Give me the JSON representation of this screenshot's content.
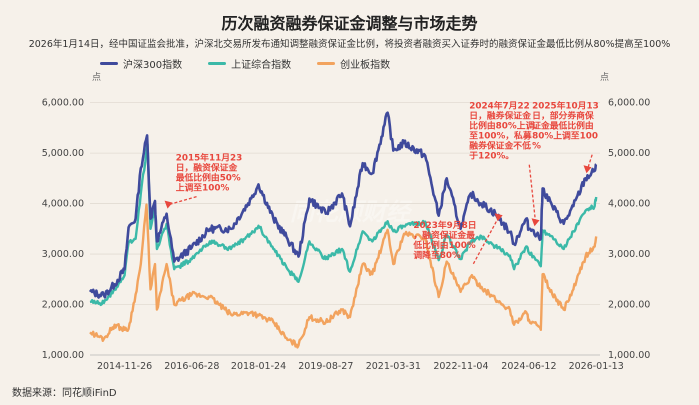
{
  "chart_data": {
    "type": "line",
    "title": "历次融资融券保证金调整与市场走势",
    "subtitle": "2026年1月14日，经中国证监会批准，沪深北交易所发布通知调整融资保证金比例，将投资者融资买入证券时的融资保证金最低比例从80%提高至100%",
    "y_unit_left": "点",
    "y_unit_right": "点",
    "ylim": [
      1000,
      6250
    ],
    "y_ticks": [
      "1,000.00",
      "2,000.00",
      "3,000.00",
      "4,000.00",
      "5,000.00",
      "6,000.00"
    ],
    "x_ticks": [
      "2014-11-26",
      "2016-06-28",
      "2018-01-24",
      "2019-08-27",
      "2021-03-31",
      "2022-11-04",
      "2024-06-12",
      "2026-01-13"
    ],
    "x_range": [
      "2014-02-01",
      "2026-02-15"
    ],
    "legend_position": "top-left",
    "grid": true,
    "series": [
      {
        "name": "沪深300指数",
        "color": "#3f4a9c",
        "points": [
          [
            "2014-02-01",
            2250
          ],
          [
            "2014-06-01",
            2180
          ],
          [
            "2014-09-01",
            2400
          ],
          [
            "2014-11-26",
            2700
          ],
          [
            "2014-12-31",
            3530
          ],
          [
            "2015-03-01",
            3700
          ],
          [
            "2015-04-15",
            4700
          ],
          [
            "2015-06-08",
            5350
          ],
          [
            "2015-07-08",
            3700
          ],
          [
            "2015-08-15",
            4050
          ],
          [
            "2015-09-01",
            3250
          ],
          [
            "2015-11-23",
            3800
          ],
          [
            "2016-01-28",
            2850
          ],
          [
            "2016-06-28",
            3130
          ],
          [
            "2016-11-30",
            3500
          ],
          [
            "2017-06-01",
            3500
          ],
          [
            "2017-11-22",
            4100
          ],
          [
            "2018-01-24",
            4380
          ],
          [
            "2018-06-01",
            3700
          ],
          [
            "2018-10-01",
            3300
          ],
          [
            "2019-01-04",
            2950
          ],
          [
            "2019-04-08",
            4100
          ],
          [
            "2019-08-27",
            3800
          ],
          [
            "2020-01-14",
            4200
          ],
          [
            "2020-03-23",
            3550
          ],
          [
            "2020-07-10",
            4800
          ],
          [
            "2020-10-01",
            4600
          ],
          [
            "2021-02-10",
            5800
          ],
          [
            "2021-03-31",
            5050
          ],
          [
            "2021-07-01",
            5200
          ],
          [
            "2021-12-31",
            4950
          ],
          [
            "2022-04-26",
            3760
          ],
          [
            "2022-07-04",
            4500
          ],
          [
            "2022-11-01",
            3500
          ],
          [
            "2023-01-28",
            4200
          ],
          [
            "2023-05-01",
            4000
          ],
          [
            "2023-08-28",
            3800
          ],
          [
            "2023-12-31",
            3430
          ],
          [
            "2024-02-05",
            3200
          ],
          [
            "2024-05-20",
            3700
          ],
          [
            "2024-06-12",
            3500
          ],
          [
            "2024-07-22",
            3470
          ],
          [
            "2024-09-23",
            3300
          ],
          [
            "2024-10-08",
            4300
          ],
          [
            "2024-12-31",
            3950
          ],
          [
            "2025-04-08",
            3600
          ],
          [
            "2025-07-01",
            3950
          ],
          [
            "2025-10-13",
            4500
          ],
          [
            "2025-12-31",
            4650
          ],
          [
            "2026-01-13",
            4780
          ]
        ]
      },
      {
        "name": "上证综合指数",
        "color": "#3bb9a8",
        "points": [
          [
            "2014-02-01",
            2050
          ],
          [
            "2014-06-01",
            2030
          ],
          [
            "2014-09-01",
            2300
          ],
          [
            "2014-11-26",
            2580
          ],
          [
            "2014-12-31",
            3230
          ],
          [
            "2015-03-01",
            3300
          ],
          [
            "2015-04-15",
            4200
          ],
          [
            "2015-06-12",
            5178
          ],
          [
            "2015-07-08",
            3500
          ],
          [
            "2015-08-15",
            3900
          ],
          [
            "2015-09-01",
            3100
          ],
          [
            "2015-11-23",
            3600
          ],
          [
            "2016-01-28",
            2700
          ],
          [
            "2016-06-28",
            2900
          ],
          [
            "2016-11-30",
            3250
          ],
          [
            "2017-06-01",
            3100
          ],
          [
            "2017-11-22",
            3400
          ],
          [
            "2018-01-24",
            3560
          ],
          [
            "2018-06-01",
            3100
          ],
          [
            "2018-10-01",
            2700
          ],
          [
            "2019-01-04",
            2450
          ],
          [
            "2019-04-08",
            3250
          ],
          [
            "2019-08-27",
            2900
          ],
          [
            "2020-01-14",
            3100
          ],
          [
            "2020-03-23",
            2650
          ],
          [
            "2020-07-10",
            3450
          ],
          [
            "2020-10-01",
            3250
          ],
          [
            "2021-02-10",
            3650
          ],
          [
            "2021-03-31",
            3450
          ],
          [
            "2021-07-01",
            3550
          ],
          [
            "2021-12-31",
            3640
          ],
          [
            "2022-04-26",
            2880
          ],
          [
            "2022-07-04",
            3380
          ],
          [
            "2022-11-01",
            2900
          ],
          [
            "2023-01-28",
            3250
          ],
          [
            "2023-05-01",
            3350
          ],
          [
            "2023-08-28",
            3150
          ],
          [
            "2023-12-31",
            2970
          ],
          [
            "2024-02-05",
            2700
          ],
          [
            "2024-05-20",
            3150
          ],
          [
            "2024-06-12",
            3020
          ],
          [
            "2024-07-22",
            2960
          ],
          [
            "2024-09-23",
            2760
          ],
          [
            "2024-10-08",
            3470
          ],
          [
            "2024-12-31",
            3350
          ],
          [
            "2025-04-08",
            3100
          ],
          [
            "2025-07-01",
            3450
          ],
          [
            "2025-10-13",
            3860
          ],
          [
            "2025-12-31",
            3950
          ],
          [
            "2026-01-13",
            4130
          ]
        ]
      },
      {
        "name": "创业板指数",
        "color": "#f2a35e",
        "points": [
          [
            "2014-02-01",
            1450
          ],
          [
            "2014-06-01",
            1320
          ],
          [
            "2014-09-01",
            1600
          ],
          [
            "2014-11-26",
            1500
          ],
          [
            "2014-12-31",
            1520
          ],
          [
            "2015-03-01",
            2200
          ],
          [
            "2015-04-15",
            2800
          ],
          [
            "2015-06-03",
            3980
          ],
          [
            "2015-07-08",
            2300
          ],
          [
            "2015-08-15",
            2800
          ],
          [
            "2015-09-01",
            1900
          ],
          [
            "2015-11-23",
            2800
          ],
          [
            "2016-01-28",
            2000
          ],
          [
            "2016-06-28",
            2200
          ],
          [
            "2016-11-30",
            2150
          ],
          [
            "2017-06-01",
            1800
          ],
          [
            "2017-11-22",
            1850
          ],
          [
            "2018-01-24",
            1780
          ],
          [
            "2018-06-01",
            1650
          ],
          [
            "2018-10-01",
            1300
          ],
          [
            "2019-01-04",
            1190
          ],
          [
            "2019-04-08",
            1750
          ],
          [
            "2019-08-27",
            1650
          ],
          [
            "2020-01-14",
            1900
          ],
          [
            "2020-03-23",
            1750
          ],
          [
            "2020-07-10",
            2800
          ],
          [
            "2020-10-01",
            2600
          ],
          [
            "2021-02-10",
            3480
          ],
          [
            "2021-03-31",
            2800
          ],
          [
            "2021-07-01",
            3400
          ],
          [
            "2021-12-31",
            3320
          ],
          [
            "2022-04-26",
            2150
          ],
          [
            "2022-07-04",
            2850
          ],
          [
            "2022-11-01",
            2250
          ],
          [
            "2023-01-28",
            2550
          ],
          [
            "2023-05-01",
            2350
          ],
          [
            "2023-08-28",
            2100
          ],
          [
            "2023-12-31",
            1900
          ],
          [
            "2024-02-05",
            1600
          ],
          [
            "2024-05-20",
            1850
          ],
          [
            "2024-06-12",
            1700
          ],
          [
            "2024-07-22",
            1650
          ],
          [
            "2024-09-23",
            1500
          ],
          [
            "2024-10-08",
            2600
          ],
          [
            "2024-12-31",
            2200
          ],
          [
            "2025-04-08",
            1900
          ],
          [
            "2025-07-01",
            2300
          ],
          [
            "2025-10-13",
            2950
          ],
          [
            "2025-12-31",
            3150
          ],
          [
            "2026-01-13",
            3350
          ]
        ]
      }
    ],
    "annotations": [
      {
        "date": "2015-11-23",
        "lines": [
          "2015年11月23",
          "日，融资保证金",
          "最低比例由50%",
          "上调至100%"
        ],
        "text_date": "2016-02-10",
        "text_value": 4850,
        "arrow_to": 3900
      },
      {
        "date": "2023-09-08",
        "lines": [
          "2023年9月8日",
          "，融资保证金最",
          "低比例由100%",
          "调降至80%"
        ],
        "text_date": "2021-09-20",
        "text_value": 3520,
        "arrow_to": 3650
      },
      {
        "date": "2024-07-22",
        "lines": [
          "2024年7月22",
          "日，融券保证金",
          "比例由80%上调",
          "至100%，私募",
          "融券保证金不低",
          "于120%。"
        ],
        "text_date": "2023-01-15",
        "text_value": 5880,
        "arrow_to": 3550
      },
      {
        "date": "2025-10-13",
        "lines": [
          "2025年10月13",
          "日，部分券商保",
          "证金最低比例由",
          "80%上调至100",
          "%"
        ],
        "text_date": "2024-07-10",
        "text_value": 5880,
        "arrow_to": 4600
      }
    ],
    "watermark": "同花顺财经",
    "annotation_color": "#e8473d"
  },
  "source_label": "数据来源：同花顺iFinD"
}
